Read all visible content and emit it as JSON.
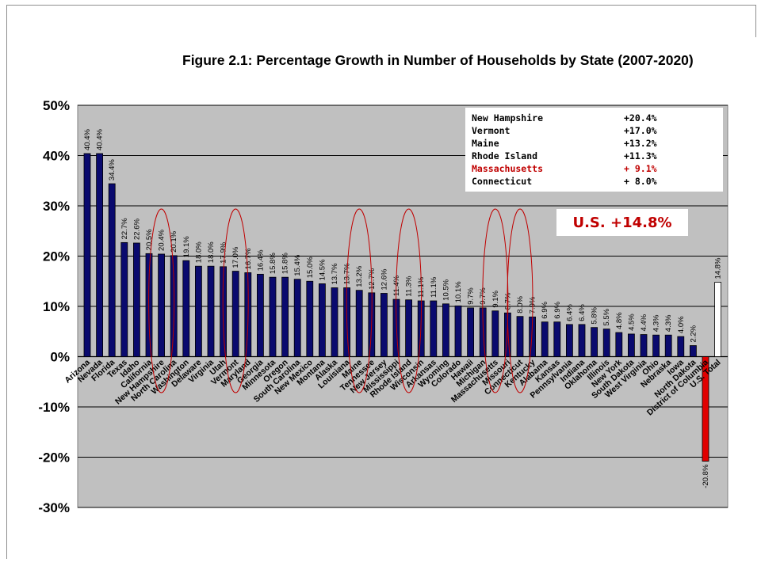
{
  "chart_data": {
    "type": "bar",
    "title": "Figure 2.1: Percentage Growth in Number of Households by State (2007-2020)",
    "xlabel": "",
    "ylabel": "",
    "ylim": [
      -30,
      50
    ],
    "yticks": [
      50,
      40,
      30,
      20,
      10,
      0,
      -10,
      -20,
      -30
    ],
    "ytick_labels": [
      "50%",
      "40%",
      "30%",
      "20%",
      "10%",
      "0%",
      "-10%",
      "-20%",
      "-30%"
    ],
    "grid": true,
    "colors": {
      "bar": "#0a0a6e",
      "negative": "#e00000",
      "total": "#ffffff",
      "plot_bg": "#c0c0c0",
      "highlight": "#c00000"
    },
    "categories": [
      "Arizona",
      "Nevada",
      "Florida",
      "Texas",
      "Idaho",
      "California",
      "New Hampshire",
      "North Carolina",
      "Washington",
      "Delaware",
      "Virginia",
      "Utah",
      "Vermont",
      "Maryland",
      "Georgia",
      "Minnesota",
      "Oregon",
      "South Carolina",
      "New Mexico",
      "Montana",
      "Alaska",
      "Louisiana",
      "Maine",
      "Tennessee",
      "New Jersey",
      "Mississippi",
      "Rhode Island",
      "Wisconsin",
      "Arkansas",
      "Wyoming",
      "Colorado",
      "Hawaii",
      "Michigan",
      "Massachusetts",
      "Missouri",
      "Connecticut",
      "Kentucky",
      "Alabama",
      "Kansas",
      "Pennsylvania",
      "Indiana",
      "Oklahoma",
      "Illinois",
      "New York",
      "South Dakota",
      "West Virginia",
      "Ohio",
      "Nebraska",
      "Iowa",
      "North Dakota",
      "District of Columbia",
      "U.S. Total"
    ],
    "values": [
      40.4,
      40.4,
      34.4,
      22.7,
      22.6,
      20.5,
      20.4,
      20.1,
      19.1,
      18.0,
      18.0,
      17.9,
      17.0,
      16.7,
      16.4,
      15.8,
      15.8,
      15.4,
      15.0,
      14.5,
      13.7,
      13.7,
      13.2,
      12.7,
      12.6,
      11.4,
      11.3,
      11.1,
      11.1,
      10.5,
      10.1,
      9.7,
      9.7,
      9.1,
      8.7,
      8.0,
      7.9,
      6.9,
      6.9,
      6.4,
      6.4,
      5.8,
      5.5,
      4.8,
      4.5,
      4.4,
      4.3,
      4.3,
      4.0,
      2.2,
      -20.8,
      14.8
    ],
    "data_labels": [
      "40.4%",
      "40.4%",
      "34.4%",
      "22.7%",
      "22.6%",
      "20.5%",
      "20.4%",
      "20.1%",
      "19.1%",
      "18.0%",
      "18.0%",
      "17.9%",
      "17.0%",
      "16.7%",
      "16.4%",
      "15.8%",
      "15.8%",
      "15.4%",
      "15.0%",
      "14.5%",
      "13.7%",
      "13.7%",
      "13.2%",
      "12.7%",
      "12.6%",
      "11.4%",
      "11.3%",
      "11.1%",
      "11.1%",
      "10.5%",
      "10.1%",
      "9.7%",
      "9.7%",
      "9.1%",
      "8.7%",
      "8.0%",
      "7.9%",
      "6.9%",
      "6.9%",
      "6.4%",
      "6.4%",
      "5.8%",
      "5.5%",
      "4.8%",
      "4.5%",
      "4.4%",
      "4.3%",
      "4.3%",
      "4.0%",
      "2.2%",
      "-20.8%",
      "14.8%"
    ],
    "highlighted_states": [
      "New Hampshire",
      "Vermont",
      "Maine",
      "Rhode Island",
      "Massachusetts",
      "Connecticut"
    ],
    "inset_table": [
      {
        "state": "New Hampshire",
        "value": "+20.4%",
        "highlight": false
      },
      {
        "state": "Vermont",
        "value": "+17.0%",
        "highlight": false
      },
      {
        "state": "Maine",
        "value": "+13.2%",
        "highlight": false
      },
      {
        "state": "Rhode Island",
        "value": "+11.3%",
        "highlight": false
      },
      {
        "state": "Massachusetts",
        "value": "+ 9.1%",
        "highlight": true
      },
      {
        "state": "Connecticut",
        "value": "+ 8.0%",
        "highlight": false
      }
    ],
    "us_callout": "U.S.   +14.8%"
  }
}
